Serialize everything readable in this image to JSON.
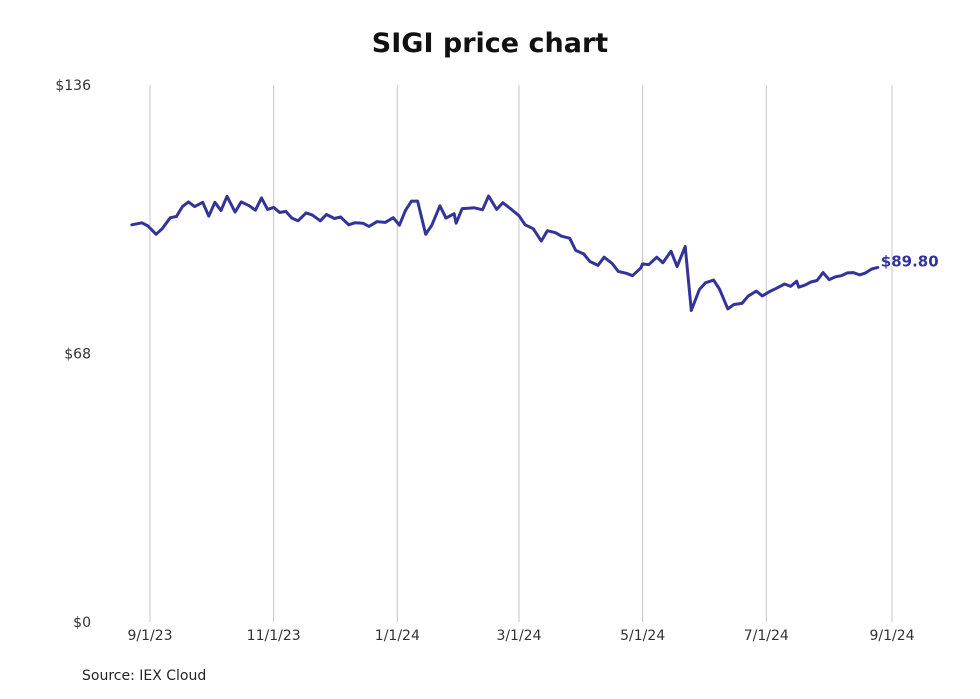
{
  "chart_data": {
    "type": "line",
    "title": "SIGI price chart",
    "source": "Source: IEX Cloud",
    "end_label": "$89.80",
    "line_color": "#33339a",
    "grid": "vertical",
    "ylim": [
      0,
      136
    ],
    "y_ticks": [
      {
        "value": 0,
        "label": "$0"
      },
      {
        "value": 68,
        "label": "$68"
      },
      {
        "value": 136,
        "label": "$136"
      }
    ],
    "x_ticks": [
      {
        "date": "2023-09-01",
        "label": "9/1/23"
      },
      {
        "date": "2023-11-01",
        "label": "11/1/23"
      },
      {
        "date": "2024-01-01",
        "label": "1/1/24"
      },
      {
        "date": "2024-03-01",
        "label": "3/1/24"
      },
      {
        "date": "2024-05-01",
        "label": "5/1/24"
      },
      {
        "date": "2024-07-01",
        "label": "7/1/24"
      },
      {
        "date": "2024-09-01",
        "label": "9/1/24"
      }
    ],
    "series": [
      {
        "x": [
          "2023-08-23",
          "2023-08-28",
          "2023-08-31",
          "2023-09-04",
          "2023-09-07",
          "2023-09-11",
          "2023-09-14",
          "2023-09-17",
          "2023-09-20",
          "2023-09-23",
          "2023-09-27",
          "2023-09-30",
          "2023-10-03",
          "2023-10-06",
          "2023-10-09",
          "2023-10-13",
          "2023-10-16",
          "2023-10-20",
          "2023-10-23",
          "2023-10-26",
          "2023-10-29",
          "2023-11-01",
          "2023-11-04",
          "2023-11-07",
          "2023-11-10",
          "2023-11-13",
          "2023-11-17",
          "2023-11-20",
          "2023-11-24",
          "2023-11-27",
          "2023-12-01",
          "2023-12-04",
          "2023-12-08",
          "2023-12-11",
          "2023-12-15",
          "2023-12-18",
          "2023-12-22",
          "2023-12-26",
          "2023-12-30",
          "2024-01-02",
          "2024-01-05",
          "2024-01-08",
          "2024-01-11",
          "2024-01-15",
          "2024-01-18",
          "2024-01-22",
          "2024-01-25",
          "2024-01-29",
          "2024-01-30",
          "2024-02-02",
          "2024-02-05",
          "2024-02-08",
          "2024-02-12",
          "2024-02-15",
          "2024-02-19",
          "2024-02-22",
          "2024-02-26",
          "2024-03-01",
          "2024-03-04",
          "2024-03-08",
          "2024-03-12",
          "2024-03-15",
          "2024-03-19",
          "2024-03-22",
          "2024-03-26",
          "2024-03-29",
          "2024-04-02",
          "2024-04-05",
          "2024-04-09",
          "2024-04-12",
          "2024-04-16",
          "2024-04-19",
          "2024-04-23",
          "2024-04-26",
          "2024-04-30",
          "2024-05-01",
          "2024-05-04",
          "2024-05-08",
          "2024-05-11",
          "2024-05-15",
          "2024-05-18",
          "2024-05-22",
          "2024-05-25",
          "2024-05-29",
          "2024-06-01",
          "2024-06-05",
          "2024-06-08",
          "2024-06-12",
          "2024-06-15",
          "2024-06-19",
          "2024-06-22",
          "2024-06-26",
          "2024-06-29",
          "2024-07-03",
          "2024-07-06",
          "2024-07-10",
          "2024-07-13",
          "2024-07-16",
          "2024-07-17",
          "2024-07-20",
          "2024-07-23",
          "2024-07-26",
          "2024-07-29",
          "2024-08-01",
          "2024-08-04",
          "2024-08-07",
          "2024-08-10",
          "2024-08-13",
          "2024-08-16",
          "2024-08-19",
          "2024-08-22",
          "2024-08-25"
        ],
        "y": [
          100.6,
          101.1,
          100.3,
          98.2,
          99.6,
          102.4,
          102.7,
          105.2,
          106.4,
          105.2,
          106.3,
          102.8,
          106.3,
          104.2,
          107.8,
          103.8,
          106.4,
          105.4,
          104.3,
          107.4,
          104.5,
          105.0,
          103.7,
          104.0,
          102.3,
          101.6,
          103.6,
          103.1,
          101.6,
          103.2,
          102.2,
          102.6,
          100.6,
          101.1,
          101.0,
          100.2,
          101.4,
          101.2,
          102.4,
          100.5,
          104.2,
          106.6,
          106.6,
          98.2,
          100.5,
          105.4,
          102.3,
          103.4,
          101.0,
          104.7,
          104.8,
          104.9,
          104.4,
          107.9,
          104.5,
          106.2,
          104.6,
          102.9,
          100.6,
          99.6,
          96.5,
          99.1,
          98.6,
          97.7,
          97.2,
          94.1,
          93.2,
          91.3,
          90.3,
          92.4,
          90.8,
          88.8,
          88.3,
          87.7,
          89.6,
          90.7,
          90.5,
          92.4,
          91.0,
          93.9,
          90.0,
          95.1,
          78.9,
          84.2,
          85.9,
          86.6,
          84.2,
          79.3,
          80.4,
          80.7,
          82.5,
          83.8,
          82.6,
          83.8,
          84.5,
          85.6,
          85.0,
          86.3,
          84.8,
          85.3,
          86.1,
          86.5,
          88.5,
          86.7,
          87.4,
          87.7,
          88.4,
          88.5,
          87.9,
          88.4,
          89.4,
          89.8
        ]
      }
    ]
  }
}
